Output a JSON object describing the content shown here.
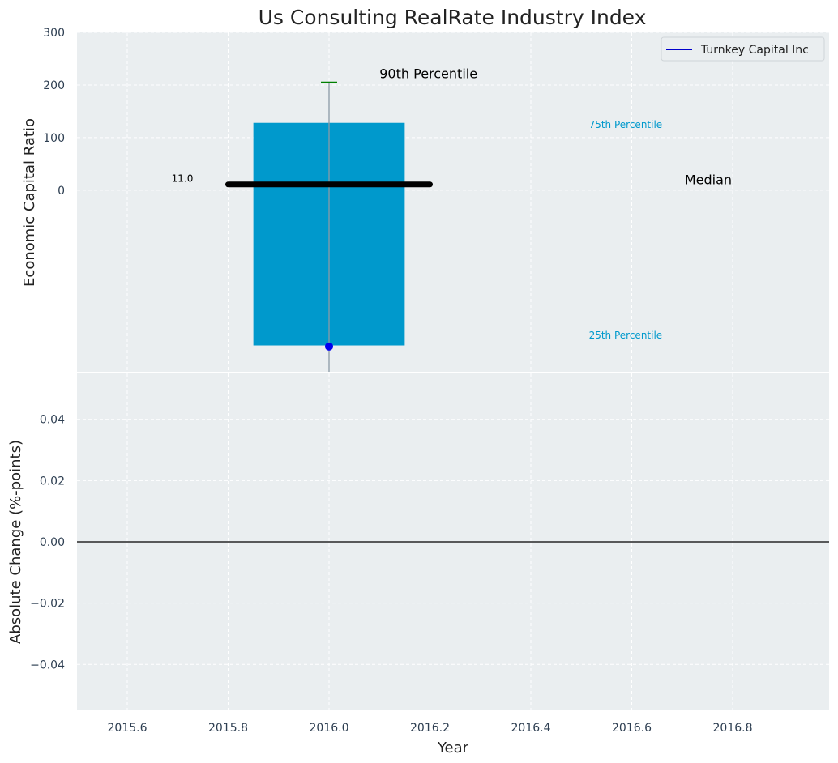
{
  "chart_data": {
    "type": "bar",
    "title": "Us Consulting RealRate Industry Index",
    "xlabel": "Year",
    "x_ticks": [
      "2015.6",
      "2015.8",
      "2016.0",
      "2016.2",
      "2016.4",
      "2016.6",
      "2016.8"
    ],
    "grid": true,
    "colors": {
      "background": "#eaeef0",
      "box": "#0099cc",
      "whisker": "#8c9aa6",
      "p90": "#008000",
      "median": "#000000",
      "company": "#0000ee",
      "zero_line": "#000000"
    },
    "legend": {
      "position": "top-right",
      "entries": [
        {
          "label": "Turnkey Capital Inc",
          "color": "#0000cc"
        }
      ]
    },
    "top_panel": {
      "ylabel": "Economic Capital Ratio",
      "ylim": [
        -345,
        300
      ],
      "y_ticks": [
        "0",
        "100",
        "200",
        "300"
      ],
      "box": {
        "x": 2016.0,
        "x_range": [
          2015.85,
          2016.15
        ],
        "p25": -295,
        "p75": 128
      },
      "p90": 205,
      "median": {
        "value": 11.0,
        "x_range": [
          2015.8,
          2016.2
        ],
        "label": "11.0"
      },
      "company_value": -297,
      "annotations": [
        {
          "text": "90th Percentile",
          "x": 2016.1,
          "y": 213
        },
        {
          "text": "75th Percentile",
          "x": 2016.515,
          "y": 118
        },
        {
          "text": "Median",
          "x": 2016.705,
          "y": 11
        },
        {
          "text": "25th Percentile",
          "x": 2016.515,
          "y": -282
        }
      ]
    },
    "bottom_panel": {
      "ylabel": "Absolute Change (%-points)",
      "ylim": [
        -0.055,
        0.055
      ],
      "y_ticks": [
        "0.04",
        "0.02",
        "0.00",
        "−0.02",
        "−0.04"
      ],
      "zero_line": 0.0
    }
  }
}
